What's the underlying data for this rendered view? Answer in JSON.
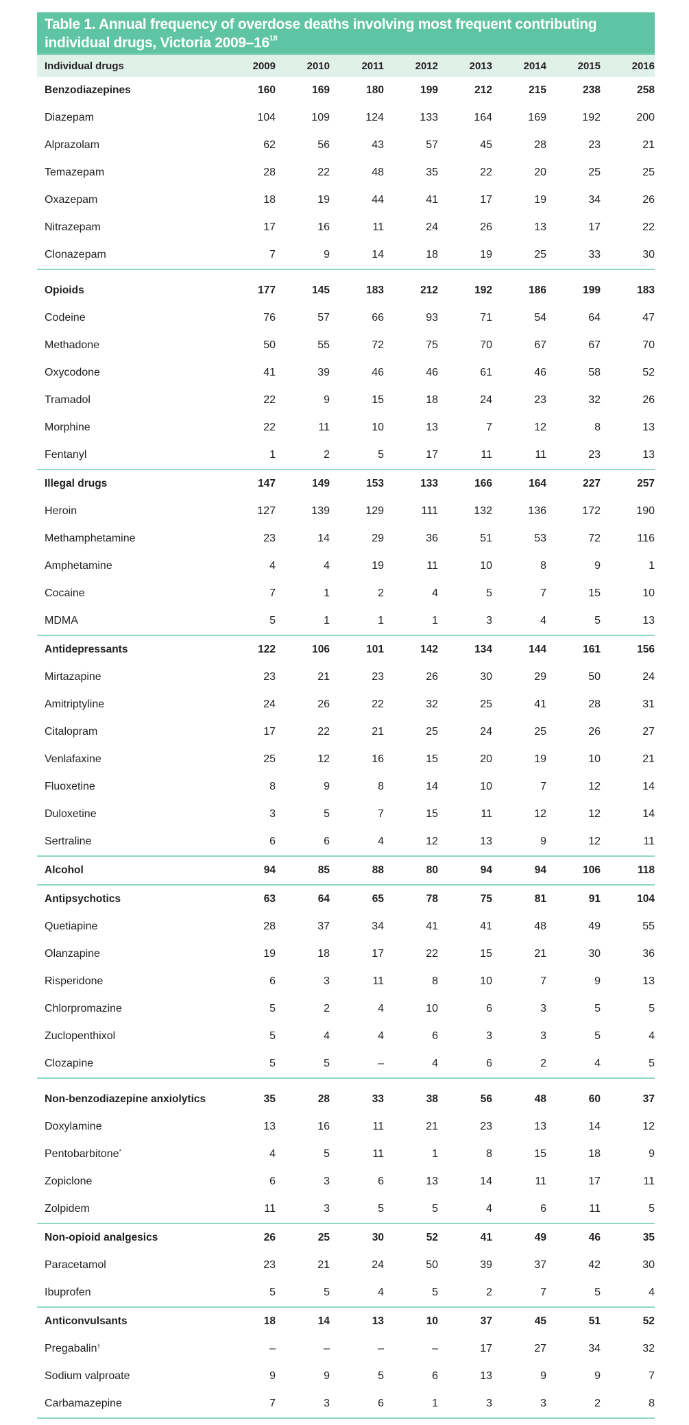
{
  "title": "Table 1. Annual frequency of overdose deaths involving most frequent contributing individual drugs, Victoria 2009–16",
  "title_ref": "18",
  "colors": {
    "title_band": "#5fc4a3",
    "header_band": "#e0f1ea",
    "divider": "#8fd8bf"
  },
  "header": {
    "label": "Individual drugs",
    "years": [
      "2009",
      "2010",
      "2011",
      "2012",
      "2013",
      "2014",
      "2015",
      "2016"
    ]
  },
  "groups": [
    {
      "name": "Benzodiazepines",
      "values": [
        "160",
        "169",
        "180",
        "199",
        "212",
        "215",
        "238",
        "258"
      ],
      "items": [
        {
          "name": "Diazepam",
          "values": [
            "104",
            "109",
            "124",
            "133",
            "164",
            "169",
            "192",
            "200"
          ]
        },
        {
          "name": "Alprazolam",
          "values": [
            "62",
            "56",
            "43",
            "57",
            "45",
            "28",
            "23",
            "21"
          ]
        },
        {
          "name": "Temazepam",
          "values": [
            "28",
            "22",
            "48",
            "35",
            "22",
            "20",
            "25",
            "25"
          ]
        },
        {
          "name": "Oxazepam",
          "values": [
            "18",
            "19",
            "44",
            "41",
            "17",
            "19",
            "34",
            "26"
          ]
        },
        {
          "name": "Nitrazepam",
          "values": [
            "17",
            "16",
            "11",
            "24",
            "26",
            "13",
            "17",
            "22"
          ]
        },
        {
          "name": "Clonazepam",
          "values": [
            "7",
            "9",
            "14",
            "18",
            "19",
            "25",
            "33",
            "30"
          ]
        }
      ]
    },
    {
      "name": "Opioids",
      "pad": true,
      "values": [
        "177",
        "145",
        "183",
        "212",
        "192",
        "186",
        "199",
        "183"
      ],
      "items": [
        {
          "name": "Codeine",
          "values": [
            "76",
            "57",
            "66",
            "93",
            "71",
            "54",
            "64",
            "47"
          ]
        },
        {
          "name": "Methadone",
          "values": [
            "50",
            "55",
            "72",
            "75",
            "70",
            "67",
            "67",
            "70"
          ]
        },
        {
          "name": "Oxycodone",
          "values": [
            "41",
            "39",
            "46",
            "46",
            "61",
            "46",
            "58",
            "52"
          ]
        },
        {
          "name": "Tramadol",
          "values": [
            "22",
            "9",
            "15",
            "18",
            "24",
            "23",
            "32",
            "26"
          ]
        },
        {
          "name": "Morphine",
          "values": [
            "22",
            "11",
            "10",
            "13",
            "7",
            "12",
            "8",
            "13"
          ]
        },
        {
          "name": "Fentanyl",
          "values": [
            "1",
            "2",
            "5",
            "17",
            "11",
            "11",
            "23",
            "13"
          ]
        }
      ]
    },
    {
      "name": "Illegal drugs",
      "values": [
        "147",
        "149",
        "153",
        "133",
        "166",
        "164",
        "227",
        "257"
      ],
      "items": [
        {
          "name": "Heroin",
          "values": [
            "127",
            "139",
            "129",
            "111",
            "132",
            "136",
            "172",
            "190"
          ]
        },
        {
          "name": "Methamphetamine",
          "values": [
            "23",
            "14",
            "29",
            "36",
            "51",
            "53",
            "72",
            "116"
          ]
        },
        {
          "name": "Amphetamine",
          "values": [
            "4",
            "4",
            "19",
            "11",
            "10",
            "8",
            "9",
            "1"
          ]
        },
        {
          "name": "Cocaine",
          "values": [
            "7",
            "1",
            "2",
            "4",
            "5",
            "7",
            "15",
            "10"
          ]
        },
        {
          "name": "MDMA",
          "values": [
            "5",
            "1",
            "1",
            "1",
            "3",
            "4",
            "5",
            "13"
          ]
        }
      ]
    },
    {
      "name": "Antidepressants",
      "values": [
        "122",
        "106",
        "101",
        "142",
        "134",
        "144",
        "161",
        "156"
      ],
      "items": [
        {
          "name": "Mirtazapine",
          "values": [
            "23",
            "21",
            "23",
            "26",
            "30",
            "29",
            "50",
            "24"
          ]
        },
        {
          "name": "Amitriptyline",
          "values": [
            "24",
            "26",
            "22",
            "32",
            "25",
            "41",
            "28",
            "31"
          ]
        },
        {
          "name": "Citalopram",
          "values": [
            "17",
            "22",
            "21",
            "25",
            "24",
            "25",
            "26",
            "27"
          ]
        },
        {
          "name": "Venlafaxine",
          "values": [
            "25",
            "12",
            "16",
            "15",
            "20",
            "19",
            "10",
            "21"
          ]
        },
        {
          "name": "Fluoxetine",
          "values": [
            "8",
            "9",
            "8",
            "14",
            "10",
            "7",
            "12",
            "14"
          ]
        },
        {
          "name": "Duloxetine",
          "values": [
            "3",
            "5",
            "7",
            "15",
            "11",
            "12",
            "12",
            "14"
          ]
        },
        {
          "name": "Sertraline",
          "values": [
            "6",
            "6",
            "4",
            "12",
            "13",
            "9",
            "12",
            "11"
          ]
        }
      ]
    },
    {
      "name": "Alcohol",
      "values": [
        "94",
        "85",
        "88",
        "80",
        "94",
        "94",
        "106",
        "118"
      ],
      "items": []
    },
    {
      "name": "Antipsychotics",
      "values": [
        "63",
        "64",
        "65",
        "78",
        "75",
        "81",
        "91",
        "104"
      ],
      "items": [
        {
          "name": "Quetiapine",
          "values": [
            "28",
            "37",
            "34",
            "41",
            "41",
            "48",
            "49",
            "55"
          ]
        },
        {
          "name": "Olanzapine",
          "values": [
            "19",
            "18",
            "17",
            "22",
            "15",
            "21",
            "30",
            "36"
          ]
        },
        {
          "name": "Risperidone",
          "values": [
            "6",
            "3",
            "11",
            "8",
            "10",
            "7",
            "9",
            "13"
          ]
        },
        {
          "name": "Chlorpromazine",
          "values": [
            "5",
            "2",
            "4",
            "10",
            "6",
            "3",
            "5",
            "5"
          ]
        },
        {
          "name": "Zuclopenthixol",
          "values": [
            "5",
            "4",
            "4",
            "6",
            "3",
            "3",
            "5",
            "4"
          ]
        },
        {
          "name": "Clozapine",
          "values": [
            "5",
            "5",
            "–",
            "4",
            "6",
            "2",
            "4",
            "5"
          ]
        }
      ]
    },
    {
      "name": "Non-benzodiazepine anxiolytics",
      "pad": true,
      "values": [
        "35",
        "28",
        "33",
        "38",
        "56",
        "48",
        "60",
        "37"
      ],
      "items": [
        {
          "name": "Doxylamine",
          "values": [
            "13",
            "16",
            "11",
            "21",
            "23",
            "13",
            "14",
            "12"
          ]
        },
        {
          "name": "Pentobarbitone",
          "mark": "*",
          "values": [
            "4",
            "5",
            "11",
            "1",
            "8",
            "15",
            "18",
            "9"
          ]
        },
        {
          "name": "Zopiclone",
          "values": [
            "6",
            "3",
            "6",
            "13",
            "14",
            "11",
            "17",
            "11"
          ]
        },
        {
          "name": "Zolpidem",
          "values": [
            "11",
            "3",
            "5",
            "5",
            "4",
            "6",
            "11",
            "5"
          ]
        }
      ]
    },
    {
      "name": "Non-opioid analgesics",
      "values": [
        "26",
        "25",
        "30",
        "52",
        "41",
        "49",
        "46",
        "35"
      ],
      "items": [
        {
          "name": "Paracetamol",
          "values": [
            "23",
            "21",
            "24",
            "50",
            "39",
            "37",
            "42",
            "30"
          ]
        },
        {
          "name": "Ibuprofen",
          "values": [
            "5",
            "5",
            "4",
            "5",
            "2",
            "7",
            "5",
            "4"
          ]
        }
      ]
    },
    {
      "name": "Anticonvulsants",
      "values": [
        "18",
        "14",
        "13",
        "10",
        "37",
        "45",
        "51",
        "52"
      ],
      "items": [
        {
          "name": "Pregabalin",
          "mark": "†",
          "values": [
            "–",
            "–",
            "–",
            "–",
            "17",
            "27",
            "34",
            "32"
          ]
        },
        {
          "name": "Sodium valproate",
          "values": [
            "9",
            "9",
            "5",
            "6",
            "13",
            "9",
            "9",
            "7"
          ]
        },
        {
          "name": "Carbamazepine",
          "values": [
            "7",
            "3",
            "6",
            "1",
            "3",
            "3",
            "2",
            "8"
          ]
        }
      ]
    }
  ]
}
